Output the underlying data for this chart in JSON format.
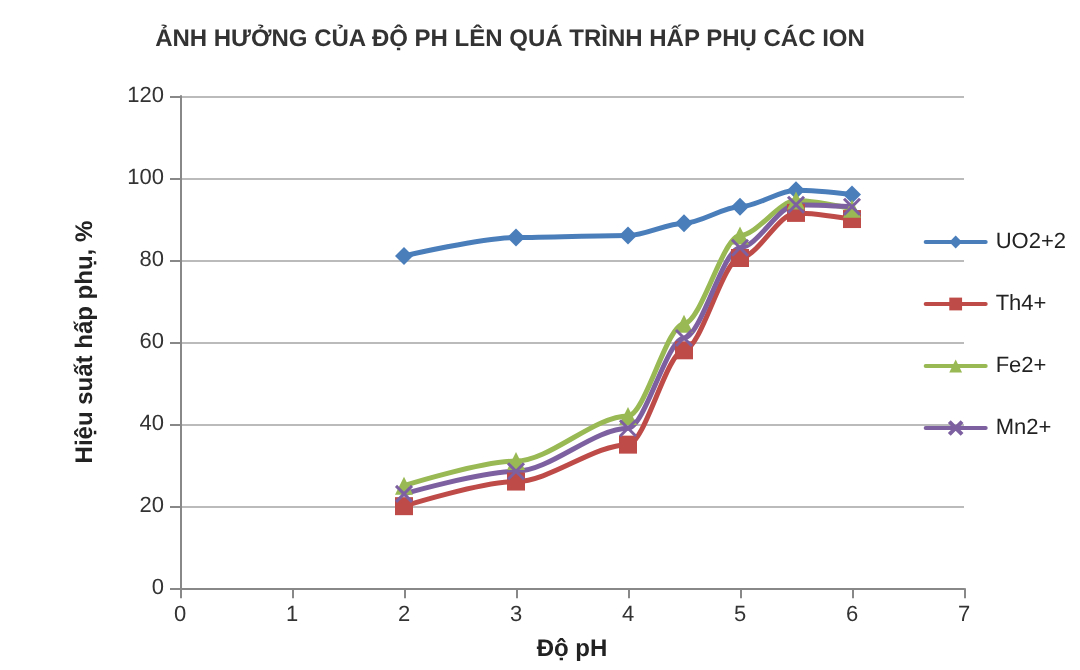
{
  "chart_data": {
    "type": "line",
    "title": "ẢNH HƯỞNG CỦA ĐỘ PH LÊN QUÁ TRÌNH HẤP PHỤ CÁC ION",
    "xlabel": "Độ pH",
    "ylabel": "Hiệu suất hấp phụ, %",
    "x": [
      2,
      3,
      4,
      4.5,
      5,
      5.5,
      6
    ],
    "series": [
      {
        "name": "UO2+2",
        "color": "#4a7ebb",
        "marker": "diamond",
        "values": [
          81,
          85.5,
          86,
          89,
          93,
          97,
          96
        ]
      },
      {
        "name": "Th4+",
        "color": "#be4b48",
        "marker": "square",
        "values": [
          20,
          26,
          35,
          58,
          80.5,
          91.5,
          90
        ]
      },
      {
        "name": "Fe2+",
        "color": "#98b954",
        "marker": "triangle",
        "values": [
          25,
          31,
          42,
          64.5,
          86,
          94.5,
          92.5
        ]
      },
      {
        "name": "Mn2+",
        "color": "#7d60a0",
        "marker": "cross",
        "values": [
          23,
          28.5,
          39,
          61,
          83,
          93.5,
          93
        ]
      }
    ],
    "xlim": [
      0,
      7
    ],
    "xticks": [
      0,
      1,
      2,
      3,
      4,
      5,
      6,
      7
    ],
    "ylim": [
      0,
      120
    ],
    "yticks": [
      0,
      20,
      40,
      60,
      80,
      100,
      120
    ],
    "grid": "y",
    "legend": "right"
  }
}
